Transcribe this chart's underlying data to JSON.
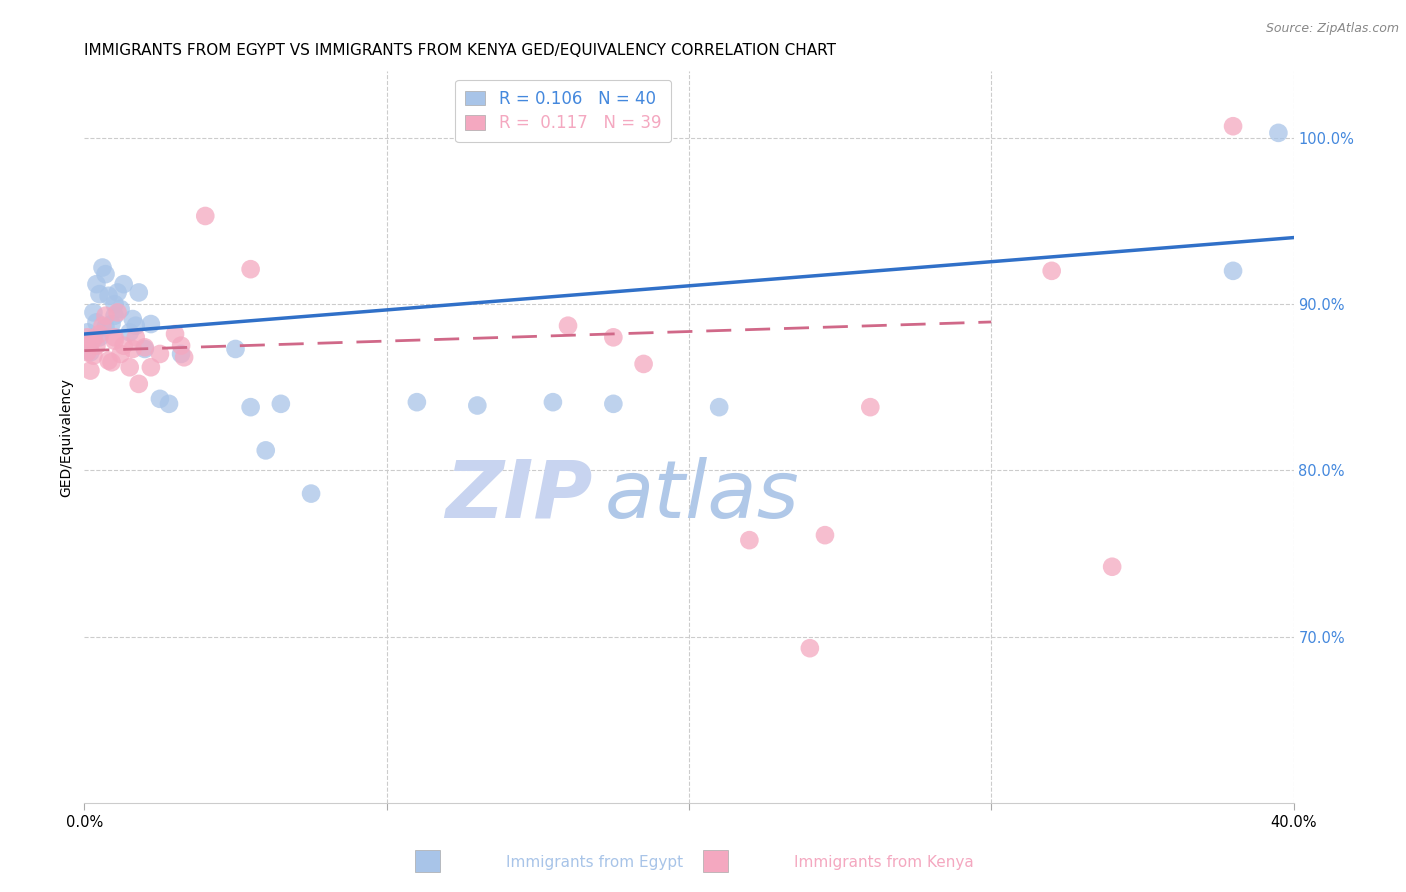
{
  "title": "IMMIGRANTS FROM EGYPT VS IMMIGRANTS FROM KENYA GED/EQUIVALENCY CORRELATION CHART",
  "source": "Source: ZipAtlas.com",
  "ylabel": "GED/Equivalency",
  "R_egypt": 0.106,
  "N_egypt": 40,
  "R_kenya": 0.117,
  "N_kenya": 39,
  "egypt_color": "#a8c4e8",
  "kenya_color": "#f4a8c0",
  "egypt_line_color": "#3070c8",
  "kenya_line_color": "#d06888",
  "right_axis_color": "#4488dd",
  "watermark_color_zip": "#c8d4f0",
  "watermark_color_atlas": "#b0c8e8",
  "background_color": "#ffffff",
  "grid_color": "#cccccc",
  "xmin": 0.0,
  "xmax": 0.4,
  "ymin": 0.6,
  "ymax": 1.04,
  "egypt_x": [
    0.001,
    0.002,
    0.002,
    0.003,
    0.003,
    0.004,
    0.004,
    0.005,
    0.005,
    0.006,
    0.007,
    0.007,
    0.008,
    0.009,
    0.01,
    0.01,
    0.011,
    0.012,
    0.013,
    0.015,
    0.016,
    0.017,
    0.018,
    0.02,
    0.022,
    0.025,
    0.028,
    0.032,
    0.05,
    0.055,
    0.06,
    0.065,
    0.075,
    0.11,
    0.13,
    0.155,
    0.175,
    0.21,
    0.38,
    0.395
  ],
  "egypt_y": [
    0.883,
    0.878,
    0.871,
    0.88,
    0.895,
    0.889,
    0.912,
    0.906,
    0.88,
    0.922,
    0.918,
    0.886,
    0.905,
    0.888,
    0.893,
    0.9,
    0.907,
    0.897,
    0.912,
    0.883,
    0.891,
    0.887,
    0.907,
    0.873,
    0.888,
    0.843,
    0.84,
    0.87,
    0.873,
    0.838,
    0.812,
    0.84,
    0.786,
    0.841,
    0.839,
    0.841,
    0.84,
    0.838,
    0.92,
    1.003
  ],
  "kenya_x": [
    0.001,
    0.001,
    0.002,
    0.002,
    0.003,
    0.003,
    0.004,
    0.005,
    0.006,
    0.007,
    0.008,
    0.009,
    0.01,
    0.01,
    0.011,
    0.012,
    0.013,
    0.015,
    0.016,
    0.017,
    0.018,
    0.02,
    0.022,
    0.025,
    0.03,
    0.032,
    0.033,
    0.04,
    0.055,
    0.16,
    0.175,
    0.185,
    0.22,
    0.24,
    0.245,
    0.26,
    0.32,
    0.34,
    0.38
  ],
  "kenya_y": [
    0.88,
    0.871,
    0.876,
    0.86,
    0.879,
    0.869,
    0.875,
    0.882,
    0.887,
    0.893,
    0.866,
    0.865,
    0.88,
    0.878,
    0.895,
    0.87,
    0.875,
    0.862,
    0.873,
    0.88,
    0.852,
    0.874,
    0.862,
    0.87,
    0.882,
    0.875,
    0.868,
    0.953,
    0.921,
    0.887,
    0.88,
    0.864,
    0.758,
    0.693,
    0.761,
    0.838,
    0.92,
    0.742,
    1.007
  ],
  "ytick_positions": [
    1.0,
    0.9,
    0.8,
    0.7
  ],
  "ytick_labels": [
    "100.0%",
    "90.0%",
    "80.0%",
    "70.0%"
  ],
  "xtick_positions": [
    0.0,
    0.1,
    0.2,
    0.3,
    0.4
  ],
  "xtick_labels": [
    "0.0%",
    "",
    "",
    "",
    "40.0%"
  ],
  "title_fontsize": 11,
  "label_fontsize": 10,
  "tick_fontsize": 10.5,
  "legend_fontsize": 12,
  "watermark_fontsize_zip": 58,
  "watermark_fontsize_atlas": 58,
  "source_fontsize": 9,
  "scatter_size": 180
}
